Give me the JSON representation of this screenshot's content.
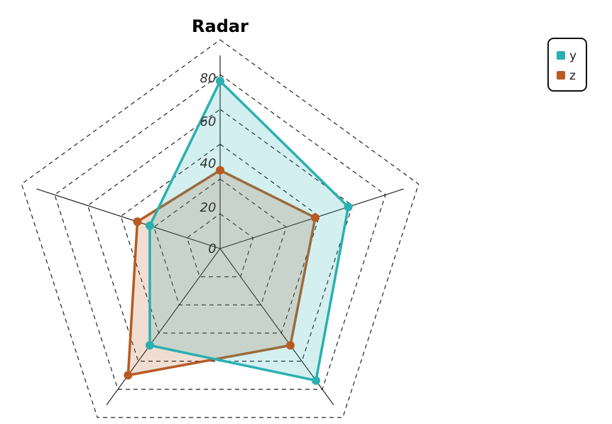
{
  "chart_data": {
    "type": "radar",
    "title": "Radar",
    "r_ticks": [
      "0",
      "20",
      "40",
      "60",
      "80"
    ],
    "rlim": [
      0,
      80
    ],
    "axes": 5,
    "grid": true,
    "legend_position": "top-right",
    "series": [
      {
        "name": "y",
        "color": "#2ab0b0",
        "values": [
          77,
          62,
          75,
          55,
          34
        ]
      },
      {
        "name": "z",
        "color": "#b85a22",
        "values": [
          36,
          46,
          55,
          72,
          40
        ]
      }
    ]
  }
}
